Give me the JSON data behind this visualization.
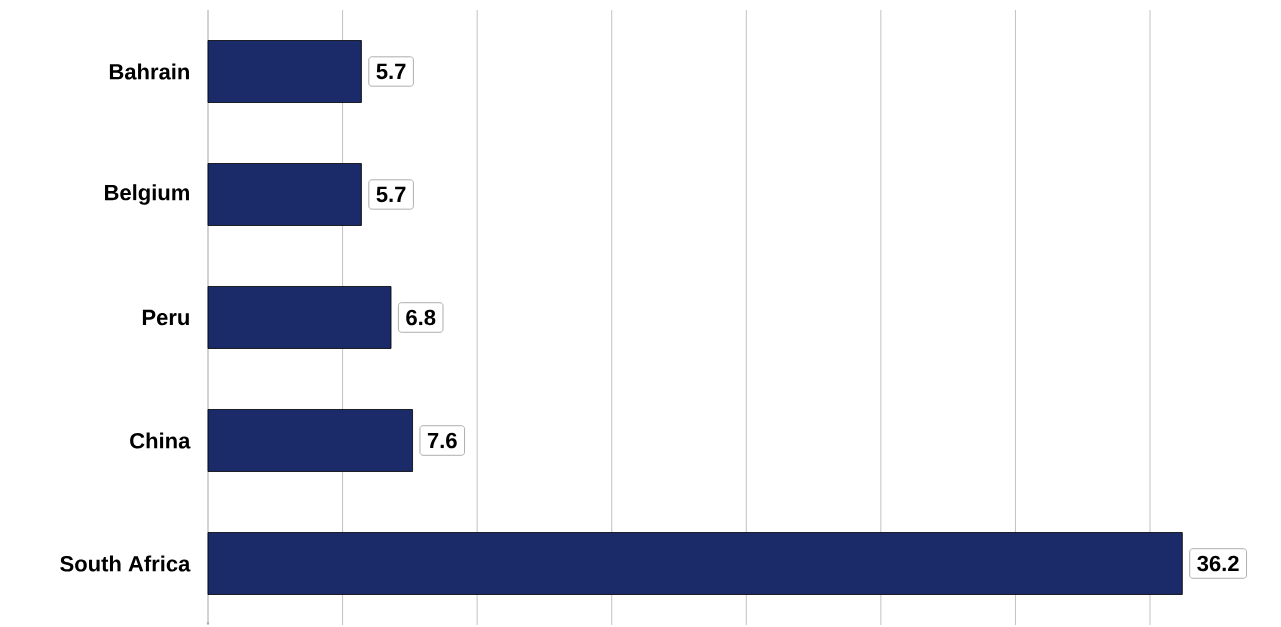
{
  "chart_data": {
    "type": "bar",
    "orientation": "horizontal",
    "categories": [
      "Bahrain",
      "Belgium",
      "Peru",
      "China",
      "South Africa"
    ],
    "values": [
      5.7,
      5.7,
      6.8,
      7.6,
      36.2
    ],
    "color": "#1b2a68",
    "xticks": [
      {
        "value": 0,
        "label": null
      },
      {
        "value": 5,
        "label": null
      },
      {
        "value": 10,
        "label": null
      },
      {
        "value": 15,
        "label": null
      },
      {
        "value": 20,
        "label": null
      },
      {
        "value": 25,
        "label": null
      },
      {
        "value": 30,
        "label": null
      },
      {
        "value": 35,
        "label": null
      }
    ],
    "tick_labels": "y",
    "grid": "x",
    "data_labels": true
  }
}
